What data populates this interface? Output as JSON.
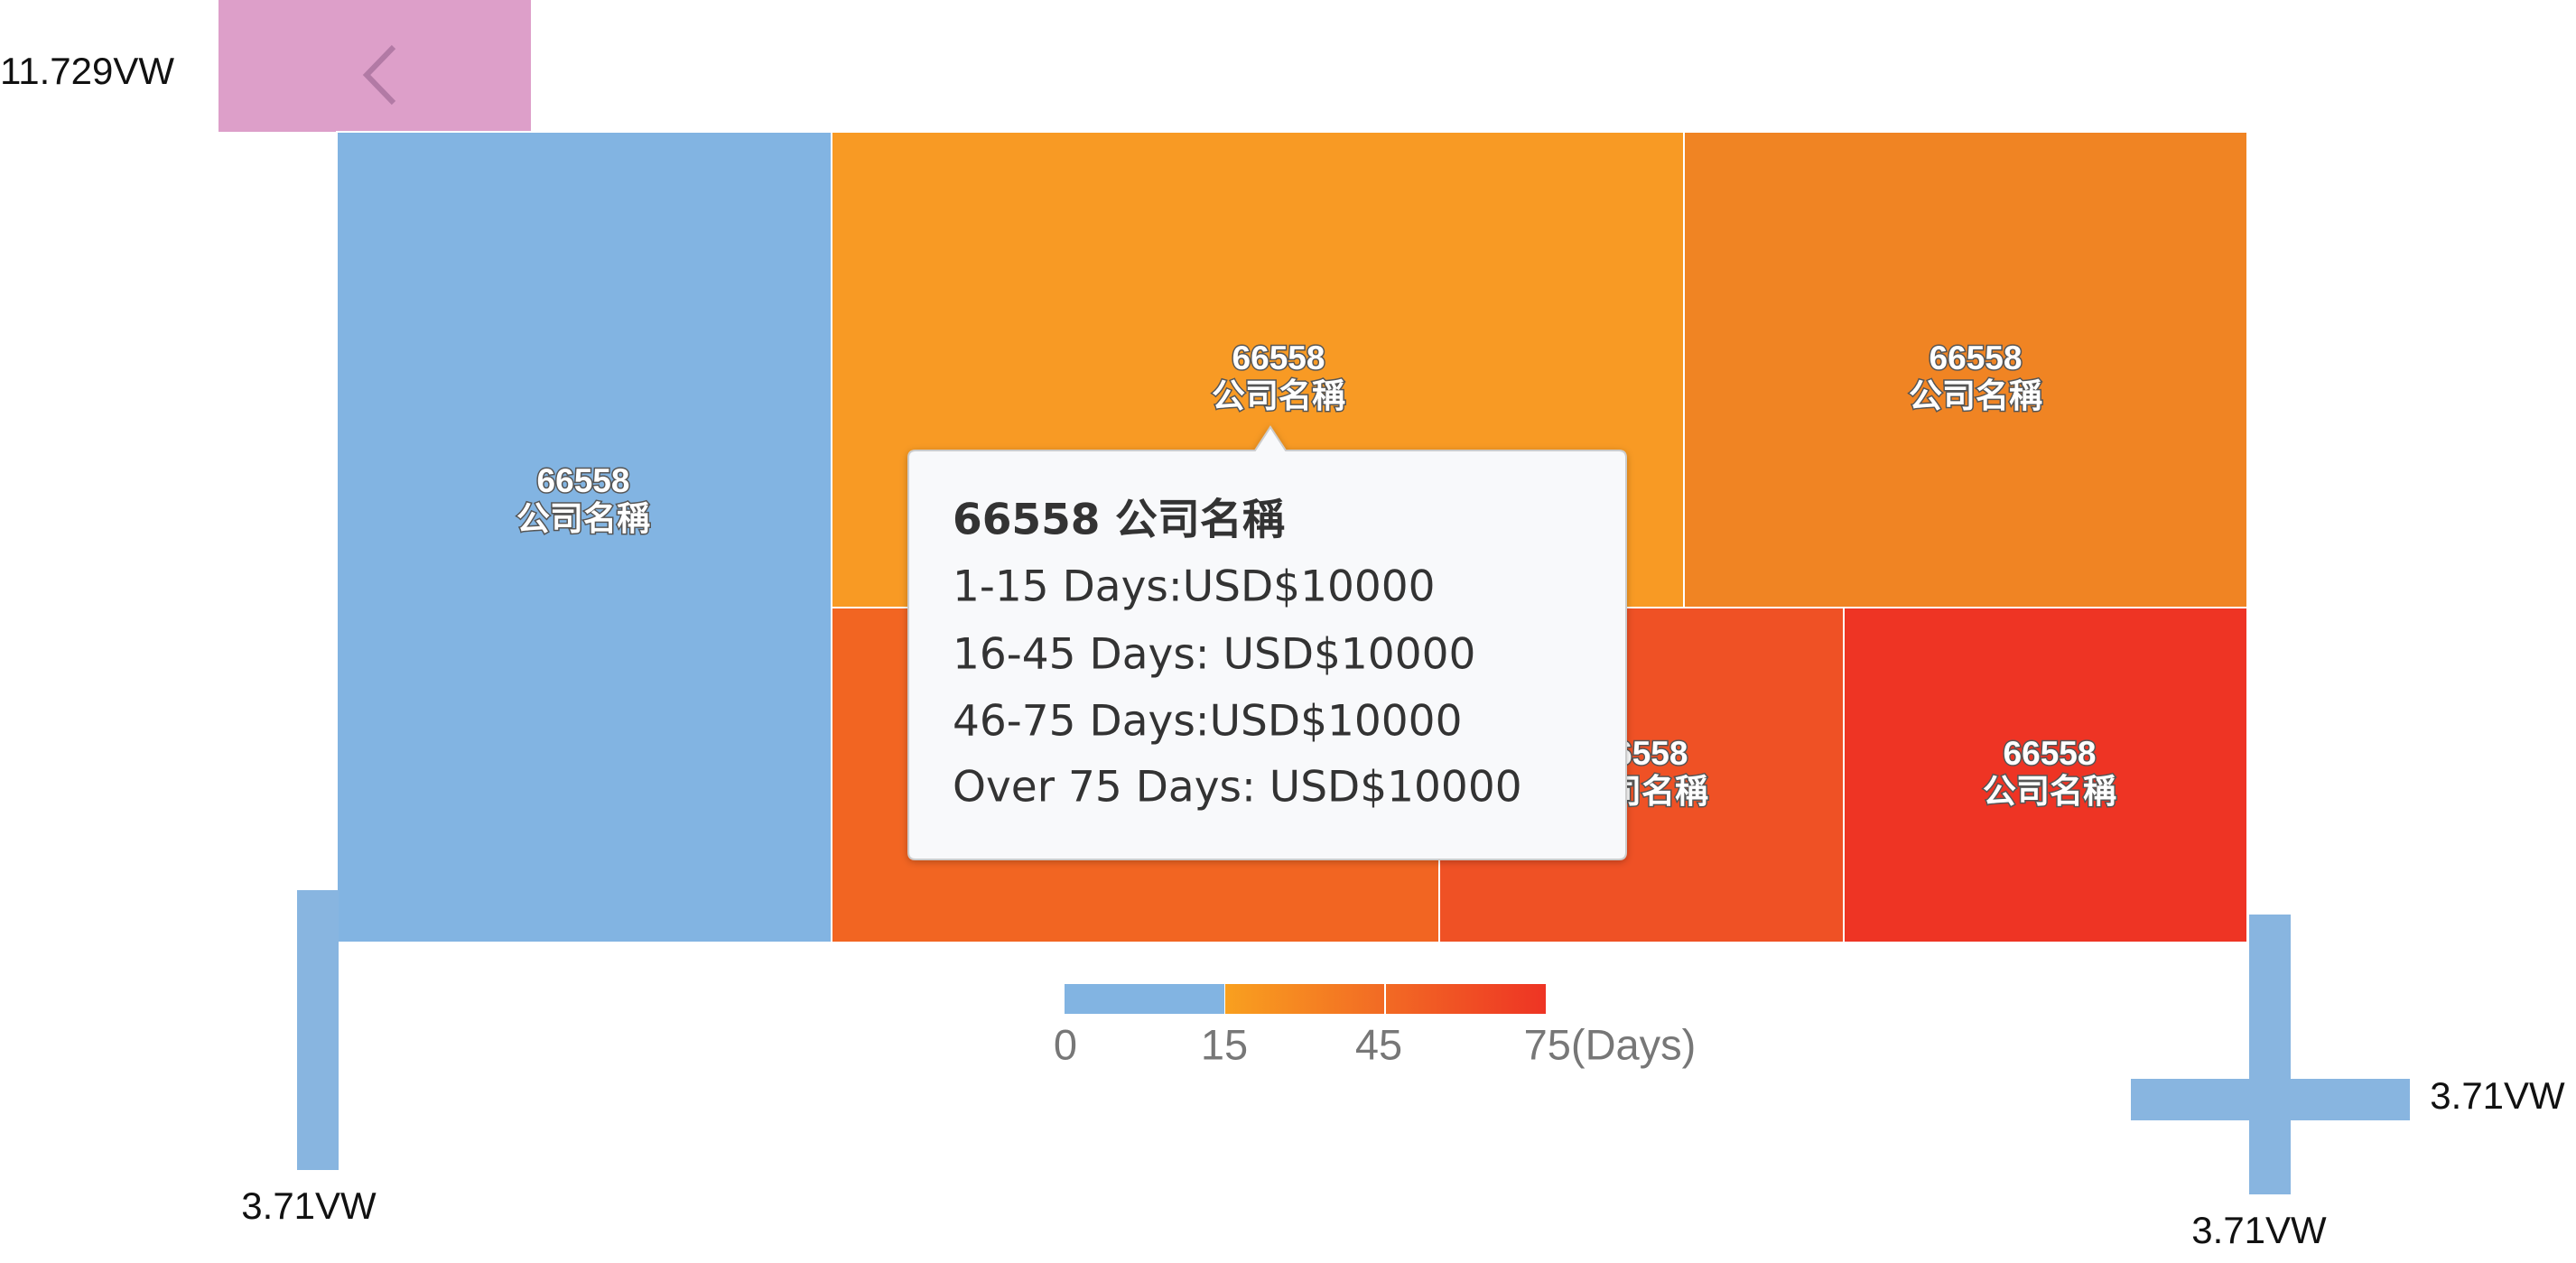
{
  "nav": {
    "left_label": "11.729VW",
    "bottom_left_label": "3.71VW",
    "right_label": "3.71VW",
    "bottom_right_label": "3.71VW"
  },
  "treemap": {
    "cells": [
      {
        "id": "66558",
        "name": "公司名稱"
      },
      {
        "id": "66558",
        "name": "公司名稱"
      },
      {
        "id": "66558",
        "name": "公司名稱"
      },
      {
        "id": "66558",
        "name": "公司名稱"
      },
      {
        "id": "66558",
        "name": "公司名稱"
      }
    ]
  },
  "tooltip": {
    "title": "66558 公司名稱",
    "lines": [
      "1-15 Days:USD$10000",
      "16-45 Days: USD$10000",
      "46-75 Days:USD$10000",
      "Over 75 Days: USD$10000"
    ]
  },
  "legend": {
    "ticks": [
      "0",
      "15",
      "45",
      "75(Days)"
    ]
  }
}
